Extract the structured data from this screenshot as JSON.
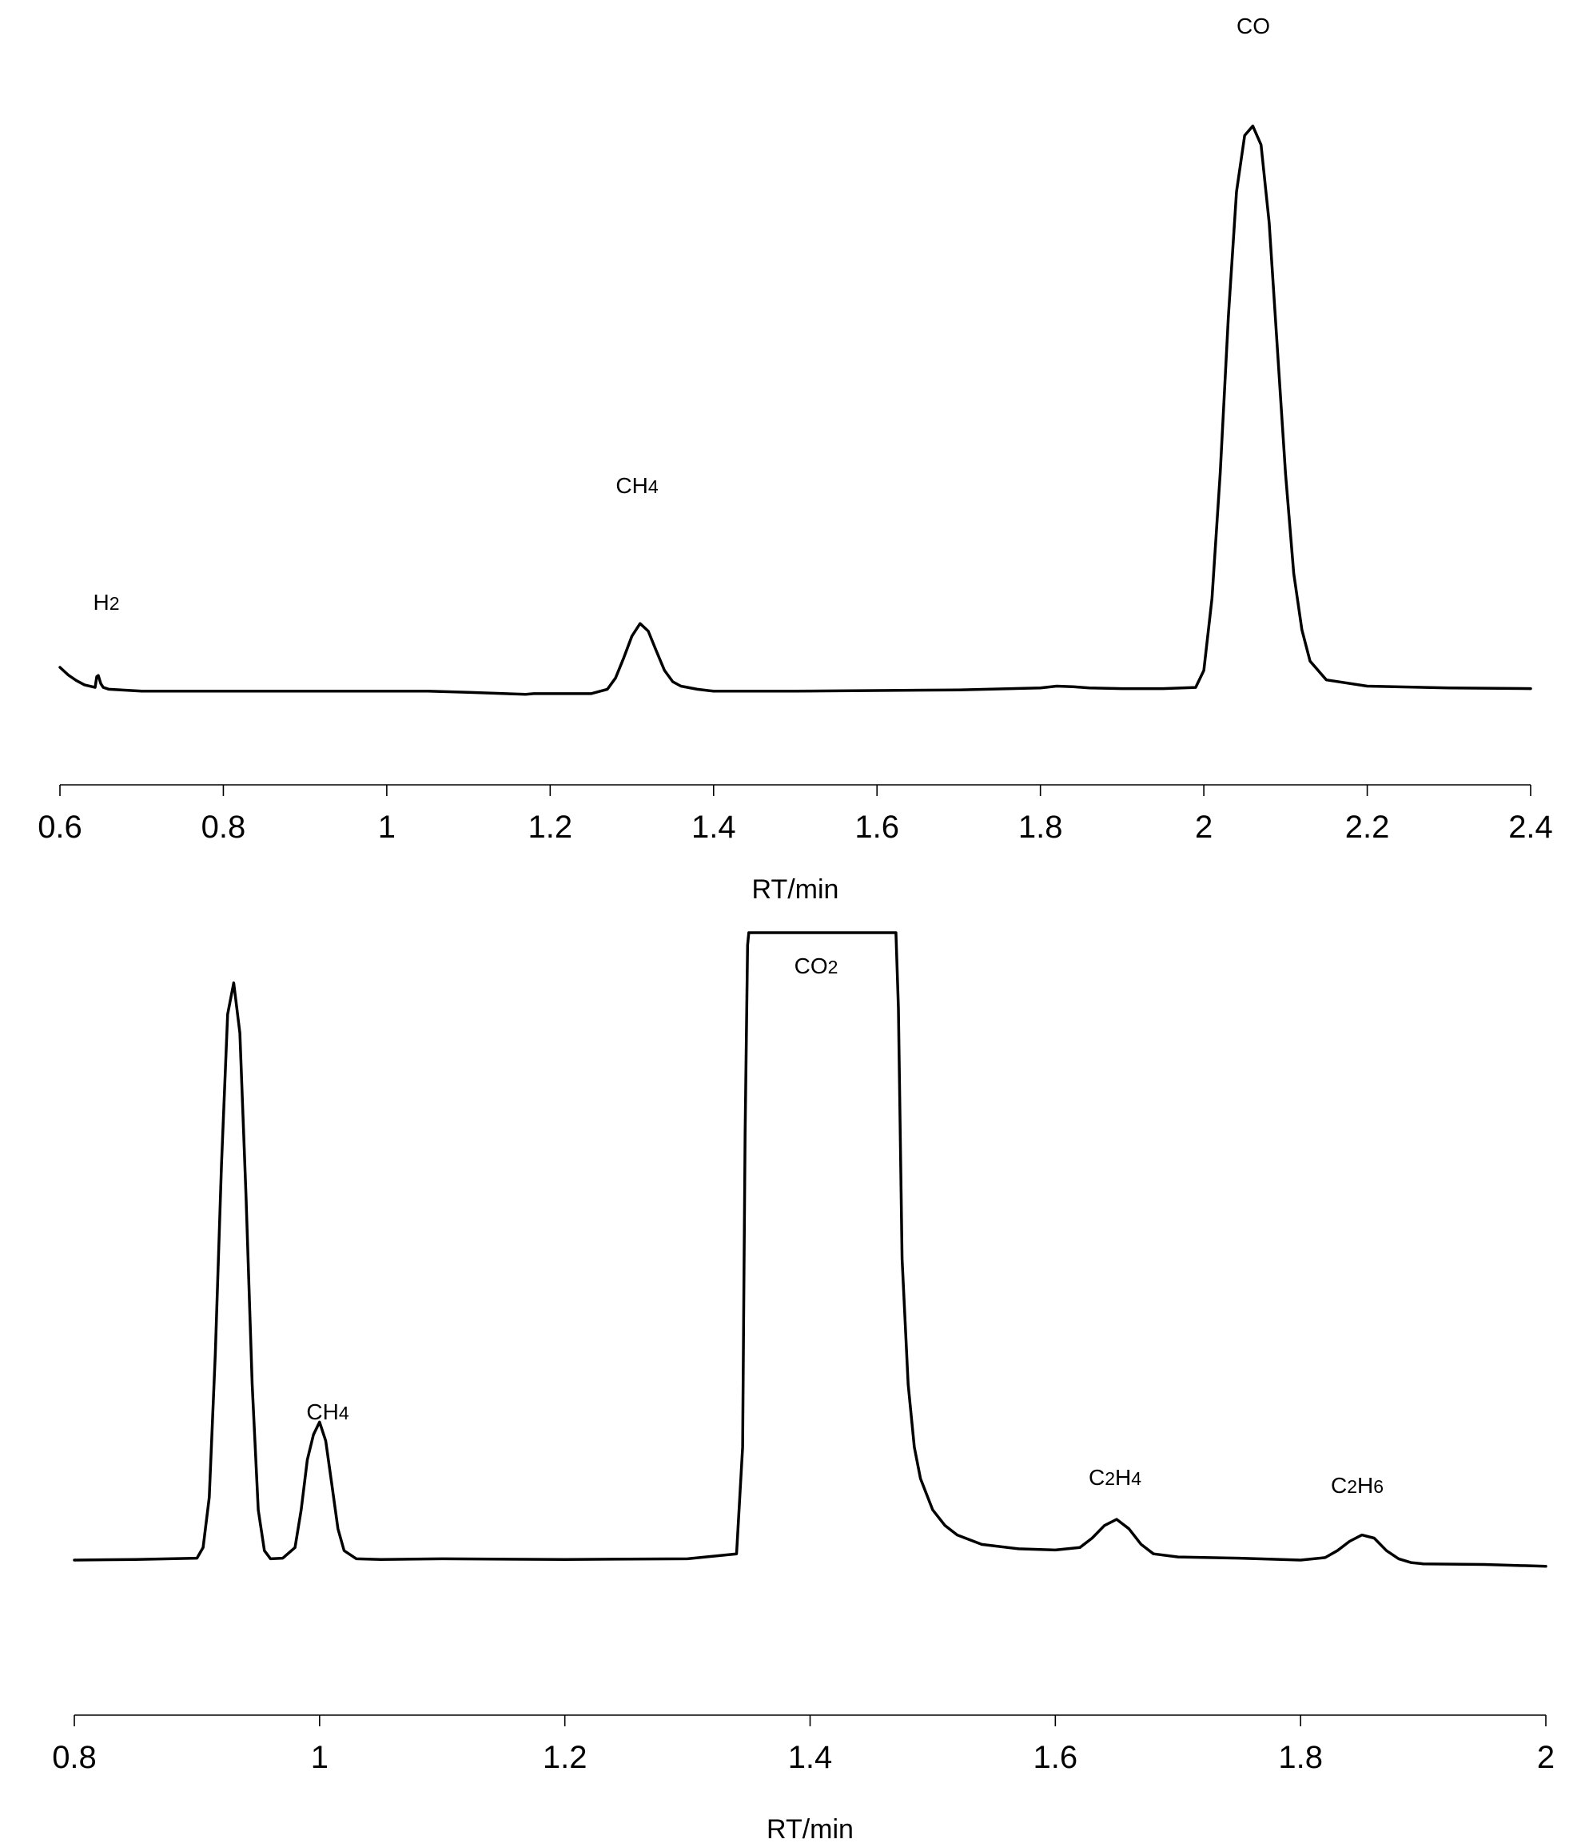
{
  "chart_data": [
    {
      "type": "line",
      "xlabel": "RT/min",
      "xlim": [
        0.6,
        2.4
      ],
      "xticks": [
        "0.6",
        "0.8",
        "1",
        "1.2",
        "1.4",
        "1.6",
        "1.8",
        "2",
        "2.2",
        "2.4"
      ],
      "grid": false,
      "annotations": [
        {
          "text": "H",
          "sub": "2",
          "x": 0.655
        },
        {
          "text": "CH",
          "sub": "4",
          "x": 1.31
        },
        {
          "text": "CO",
          "sub": "",
          "x": 2.07
        }
      ],
      "series": [
        {
          "x": [
            0.6,
            0.61,
            0.62,
            0.63,
            0.643,
            0.645,
            0.647,
            0.65,
            0.653,
            0.66,
            0.7,
            0.8,
            0.9,
            1.0,
            1.05,
            1.1,
            1.17,
            1.18,
            1.25,
            1.27,
            1.28,
            1.29,
            1.3,
            1.31,
            1.32,
            1.33,
            1.34,
            1.35,
            1.36,
            1.38,
            1.4,
            1.5,
            1.6,
            1.7,
            1.8,
            1.82,
            1.84,
            1.86,
            1.9,
            1.95,
            1.99,
            2.0,
            2.01,
            2.02,
            2.03,
            2.04,
            2.05,
            2.06,
            2.07,
            2.08,
            2.09,
            2.1,
            2.11,
            2.12,
            2.13,
            2.15,
            2.2,
            2.3,
            2.4
          ],
          "y": [
            7.0,
            5.8,
            4.9,
            4.2,
            3.8,
            5.5,
            5.7,
            4.4,
            3.8,
            3.5,
            3.2,
            3.2,
            3.2,
            3.2,
            3.2,
            3.0,
            2.7,
            2.8,
            2.8,
            3.5,
            5.3,
            8.5,
            12.0,
            14.0,
            12.8,
            9.6,
            6.5,
            4.7,
            4.0,
            3.5,
            3.2,
            3.2,
            3.3,
            3.4,
            3.7,
            4.0,
            3.9,
            3.7,
            3.6,
            3.6,
            3.8,
            6.5,
            18.0,
            38.0,
            63.0,
            83.0,
            92.0,
            93.5,
            90.5,
            78.0,
            58.0,
            38.0,
            22.0,
            13.0,
            8.0,
            5.0,
            4.0,
            3.7,
            3.6
          ]
        }
      ]
    },
    {
      "type": "line",
      "xlabel": "RT/min",
      "xlim": [
        0.8,
        2.0
      ],
      "xticks": [
        "0.8",
        "1",
        "1.2",
        "1.4",
        "1.6",
        "1.8",
        "2"
      ],
      "grid": false,
      "annotations": [
        {
          "text": "CH",
          "sub": "4",
          "x": 1.0
        },
        {
          "text": "CO",
          "sub": "2",
          "x": 1.41
        },
        {
          "text": "C",
          "sub": "2",
          "text2": "H",
          "sub2": "4",
          "x": 1.65
        },
        {
          "text": "C",
          "sub": "2",
          "text2": "H",
          "sub2": "6",
          "x": 1.86
        }
      ],
      "series": [
        {
          "x": [
            0.8,
            0.85,
            0.9,
            0.905,
            0.91,
            0.915,
            0.92,
            0.925,
            0.93,
            0.935,
            0.94,
            0.945,
            0.95,
            0.955,
            0.96,
            0.97,
            0.98,
            0.985,
            0.99,
            0.995,
            1.0,
            1.005,
            1.01,
            1.015,
            1.02,
            1.03,
            1.05,
            1.1,
            1.2,
            1.3,
            1.34,
            1.345,
            1.347,
            1.349,
            1.35,
            1.4,
            1.47,
            1.472,
            1.475,
            1.48,
            1.485,
            1.49,
            1.5,
            1.51,
            1.52,
            1.54,
            1.57,
            1.6,
            1.62,
            1.63,
            1.64,
            1.65,
            1.66,
            1.67,
            1.68,
            1.7,
            1.75,
            1.8,
            1.82,
            1.83,
            1.84,
            1.85,
            1.86,
            1.87,
            1.88,
            1.89,
            1.9,
            1.95,
            2.0
          ],
          "y": [
            12.0,
            12.1,
            12.3,
            14.0,
            22.0,
            45.0,
            75.0,
            99.0,
            104.0,
            96.0,
            70.0,
            40.0,
            20.0,
            13.5,
            12.2,
            12.3,
            14.0,
            20.0,
            28.0,
            32.0,
            34.0,
            31.0,
            24.0,
            17.0,
            13.5,
            12.2,
            12.1,
            12.2,
            12.1,
            12.2,
            13.0,
            30.0,
            80.0,
            110.0,
            112.0,
            112.0,
            112.0,
            100.0,
            60.0,
            40.0,
            30.0,
            25.0,
            20.0,
            17.5,
            16.0,
            14.5,
            13.8,
            13.6,
            14.0,
            15.5,
            17.5,
            18.5,
            17.0,
            14.5,
            13.0,
            12.5,
            12.3,
            12.0,
            12.4,
            13.5,
            15.0,
            16.0,
            15.5,
            13.5,
            12.2,
            11.6,
            11.4,
            11.3,
            11.0
          ]
        }
      ]
    }
  ]
}
